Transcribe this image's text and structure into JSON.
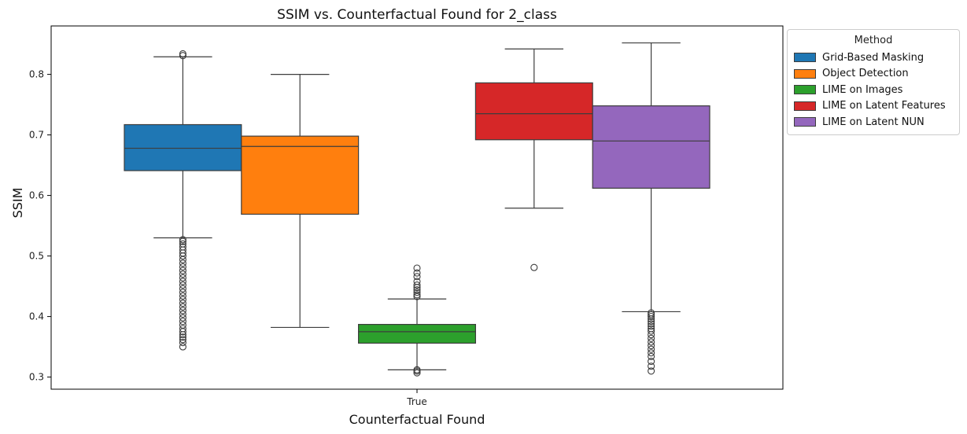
{
  "chart_data": {
    "type": "box",
    "title": "SSIM vs. Counterfactual Found for 2_class",
    "xlabel": "Counterfactual Found",
    "ylabel": "SSIM",
    "categories": [
      "True"
    ],
    "ylim": [
      0.28,
      0.88
    ],
    "yticks": [
      "0.3",
      "0.4",
      "0.5",
      "0.6",
      "0.7",
      "0.8"
    ],
    "grid": false,
    "legend": {
      "title": "Method",
      "placement": "outside-top-right"
    },
    "series": [
      {
        "name": "Grid-Based Masking",
        "color": "#1f77b4",
        "box": {
          "whisker_low": 0.53,
          "q1": 0.641,
          "median": 0.678,
          "q3": 0.717,
          "whisker_high": 0.829
        },
        "outliers": [
          0.35,
          0.357,
          0.362,
          0.366,
          0.37,
          0.375,
          0.38,
          0.386,
          0.392,
          0.398,
          0.404,
          0.41,
          0.416,
          0.422,
          0.428,
          0.434,
          0.44,
          0.446,
          0.452,
          0.458,
          0.464,
          0.47,
          0.476,
          0.482,
          0.488,
          0.494,
          0.5,
          0.505,
          0.51,
          0.515,
          0.52,
          0.524,
          0.527,
          0.831,
          0.834
        ]
      },
      {
        "name": "Object Detection",
        "color": "#ff7f0e",
        "box": {
          "whisker_low": 0.382,
          "q1": 0.569,
          "median": 0.681,
          "q3": 0.698,
          "whisker_high": 0.8
        },
        "outliers": []
      },
      {
        "name": "LIME on Images",
        "color": "#2ca02c",
        "box": {
          "whisker_low": 0.312,
          "q1": 0.356,
          "median": 0.375,
          "q3": 0.387,
          "whisker_high": 0.429
        },
        "outliers": [
          0.307,
          0.31,
          0.312,
          0.433,
          0.436,
          0.44,
          0.444,
          0.448,
          0.452,
          0.458,
          0.466,
          0.472,
          0.48
        ]
      },
      {
        "name": "LIME on Latent Features",
        "color": "#d62728",
        "box": {
          "whisker_low": 0.579,
          "q1": 0.692,
          "median": 0.735,
          "q3": 0.786,
          "whisker_high": 0.842
        },
        "outliers": [
          0.481
        ]
      },
      {
        "name": "LIME on Latent NUN",
        "color": "#9467bd",
        "box": {
          "whisker_low": 0.408,
          "q1": 0.612,
          "median": 0.69,
          "q3": 0.748,
          "whisker_high": 0.852
        },
        "outliers": [
          0.31,
          0.318,
          0.326,
          0.334,
          0.34,
          0.346,
          0.352,
          0.358,
          0.364,
          0.37,
          0.376,
          0.38,
          0.384,
          0.388,
          0.392,
          0.396,
          0.4,
          0.403,
          0.406
        ]
      }
    ]
  }
}
